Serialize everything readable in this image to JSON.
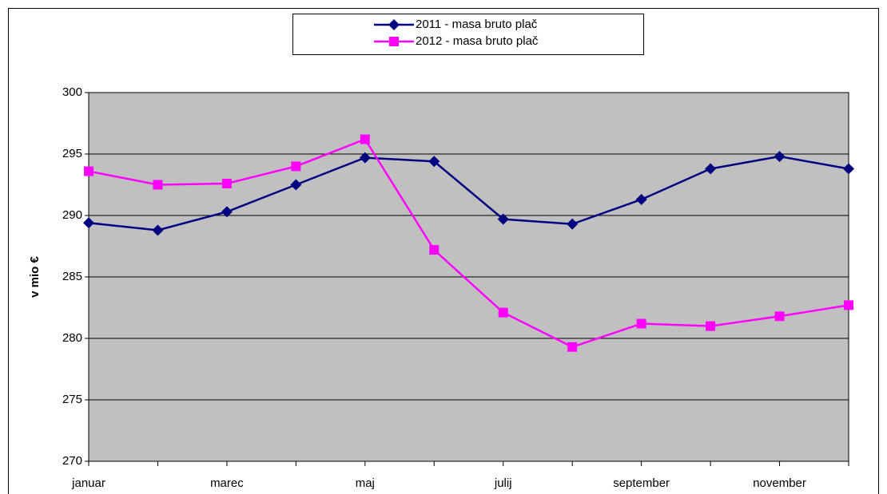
{
  "chart_data": {
    "type": "line",
    "y_label": "v mio €",
    "categories": [
      "januar",
      null,
      "marec",
      null,
      "maj",
      null,
      "julij",
      null,
      "september",
      null,
      "november",
      null
    ],
    "series": [
      {
        "name": "2011 - masa bruto plač",
        "color": "#000080",
        "marker": "diamond",
        "values": [
          289.4,
          288.8,
          290.3,
          292.5,
          294.7,
          294.4,
          289.7,
          289.3,
          291.3,
          293.8,
          294.8,
          293.8
        ]
      },
      {
        "name": "2012 - masa bruto plač",
        "color": "#ff00ff",
        "marker": "square",
        "values": [
          293.6,
          292.5,
          292.6,
          294.0,
          296.2,
          287.2,
          282.1,
          279.3,
          281.2,
          281.0,
          281.8,
          282.7
        ]
      }
    ],
    "ylim": [
      270,
      300
    ],
    "yticks": [
      270,
      275,
      280,
      285,
      290,
      295,
      300
    ],
    "grid": true,
    "legend": "top"
  }
}
